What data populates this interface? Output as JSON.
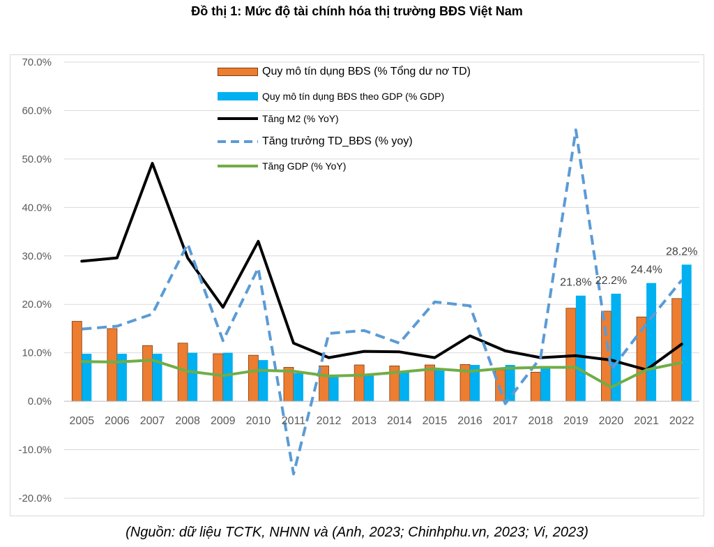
{
  "chart_data": {
    "type": "bar+line",
    "title": "Đồ thị 1: Mức độ tài chính hóa thị trường BĐS Việt Nam",
    "categories": [
      "2005",
      "2006",
      "2007",
      "2008",
      "2009",
      "2010",
      "2011",
      "2012",
      "2013",
      "2014",
      "2015",
      "2016",
      "2017",
      "2018",
      "2019",
      "2020",
      "2021",
      "2022"
    ],
    "ylim": [
      -0.2,
      0.7
    ],
    "yticks": [
      "70.0%",
      "60.0%",
      "50.0%",
      "40.0%",
      "30.0%",
      "20.0%",
      "10.0%",
      "0.0%",
      "-10.0%",
      "-20.0%"
    ],
    "ytick_values": [
      0.7,
      0.6,
      0.5,
      0.4,
      0.3,
      0.2,
      0.1,
      0.0,
      -0.1,
      -0.2
    ],
    "series": [
      {
        "name": "Quy mô tín dụng BĐS (% Tổng dư nơ TD)",
        "kind": "bar",
        "color": "#ED7D31",
        "values": [
          0.165,
          0.15,
          0.115,
          0.12,
          0.098,
          0.095,
          0.07,
          0.073,
          0.075,
          0.073,
          0.075,
          0.076,
          0.065,
          0.06,
          0.192,
          0.186,
          0.174,
          0.212
        ]
      },
      {
        "name": "Quy mô tín dụng BĐS theo GDP  (% GDP)",
        "kind": "bar",
        "color": "#00B0F0",
        "values": [
          0.098,
          0.098,
          0.098,
          0.1,
          0.1,
          0.085,
          0.058,
          0.055,
          0.055,
          0.06,
          0.065,
          0.075,
          0.075,
          0.07,
          0.218,
          0.222,
          0.244,
          0.282
        ]
      },
      {
        "name": "Tăng M2 (% YoY)",
        "kind": "line",
        "color": "#000000",
        "dash": "solid",
        "values": [
          0.289,
          0.296,
          0.491,
          0.296,
          0.194,
          0.33,
          0.12,
          0.09,
          0.103,
          0.102,
          0.09,
          0.135,
          0.104,
          0.09,
          0.094,
          0.085,
          0.065,
          0.118
        ]
      },
      {
        "name": "Tăng trưởng TD_BĐS  (% yoy)",
        "kind": "line",
        "color": "#5B9BD5",
        "dash": "dashed",
        "values": [
          0.149,
          0.155,
          0.18,
          0.325,
          0.125,
          0.275,
          -0.15,
          0.14,
          0.146,
          0.12,
          0.205,
          0.197,
          -0.005,
          0.09,
          0.56,
          0.065,
          0.16,
          0.25
        ]
      },
      {
        "name": "Tăng GDP (% YoY)",
        "kind": "line",
        "color": "#70AD47",
        "dash": "solid",
        "values": [
          0.082,
          0.081,
          0.085,
          0.062,
          0.053,
          0.064,
          0.062,
          0.052,
          0.054,
          0.06,
          0.067,
          0.062,
          0.068,
          0.07,
          0.07,
          0.029,
          0.065,
          0.08
        ]
      }
    ],
    "data_labels": [
      {
        "category": "2019",
        "text": "21.8%"
      },
      {
        "category": "2020",
        "text": "22.2%"
      },
      {
        "category": "2021",
        "text": "24.4%"
      },
      {
        "category": "2022",
        "text": "28.2%"
      }
    ],
    "grid": true,
    "legend_position": "top-center"
  },
  "source": "(Nguồn: dữ liệu TCTK, NHNN và (Anh, 2023; Chinhphu.vn, 2023; Vi, 2023)"
}
